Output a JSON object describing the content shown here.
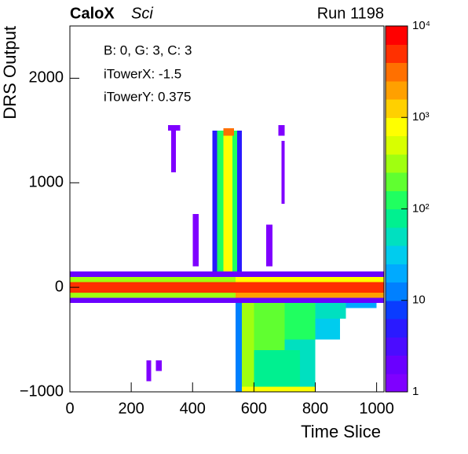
{
  "chart_data": {
    "type": "heatmap",
    "title": "CaloX",
    "subtitle": "Sci",
    "run_label": "Run 1198",
    "annotations": [
      "B: 0, G: 3, C: 3",
      "iTowerX: -1.5",
      "iTowerY: 0.375"
    ],
    "xlabel": "Time Slice",
    "ylabel": "DRS Output",
    "xlim": [
      0,
      1024
    ],
    "ylim": [
      -1000,
      2500
    ],
    "xticks": [
      0,
      200,
      400,
      600,
      800,
      1000
    ],
    "yticks": [
      {
        "value": -1000,
        "label": "−1000"
      },
      0,
      1000,
      2000
    ],
    "zlim": [
      1,
      10000
    ],
    "zlog": true,
    "zticks": [
      1,
      10,
      {
        "value": 100,
        "label": "10²"
      },
      {
        "value": 1000,
        "label": "10³"
      },
      {
        "value": 10000,
        "label": "10⁴"
      }
    ],
    "palette": [
      "#7f00ff",
      "#6a00ff",
      "#4b0cff",
      "#2a1aff",
      "#0a3cff",
      "#0080ff",
      "#00aaff",
      "#00ccee",
      "#00e0c0",
      "#00f090",
      "#20ff60",
      "#60ff30",
      "#a0ff10",
      "#d8ff00",
      "#ffff00",
      "#ffd000",
      "#ffa000",
      "#ff7000",
      "#ff3000",
      "#ff0000"
    ],
    "cells": [
      [
        0,
        1024,
        100,
        150,
        2
      ],
      [
        0,
        540,
        50,
        100,
        300
      ],
      [
        540,
        1024,
        50,
        100,
        800
      ],
      [
        0,
        1024,
        -50,
        50,
        6000
      ],
      [
        0,
        540,
        -100,
        -50,
        300
      ],
      [
        540,
        1024,
        -100,
        -50,
        2000
      ],
      [
        0,
        1024,
        -150,
        -100,
        2
      ],
      [
        465,
        480,
        150,
        1500,
        5
      ],
      [
        480,
        500,
        150,
        1500,
        150
      ],
      [
        500,
        530,
        150,
        1500,
        700
      ],
      [
        530,
        545,
        150,
        1500,
        150
      ],
      [
        545,
        560,
        150,
        1500,
        5
      ],
      [
        500,
        535,
        1450,
        1520,
        3000
      ],
      [
        540,
        560,
        -1000,
        -150,
        10
      ],
      [
        560,
        600,
        -1000,
        -150,
        300
      ],
      [
        600,
        700,
        -600,
        -150,
        200
      ],
      [
        700,
        800,
        -500,
        -150,
        100
      ],
      [
        800,
        900,
        -300,
        -150,
        50
      ],
      [
        900,
        1000,
        -200,
        -150,
        20
      ],
      [
        600,
        750,
        -950,
        -600,
        80
      ],
      [
        750,
        800,
        -950,
        -600,
        40
      ],
      [
        700,
        800,
        -600,
        -500,
        60
      ],
      [
        800,
        880,
        -500,
        -300,
        30
      ],
      [
        560,
        800,
        -1000,
        -950,
        800
      ],
      [
        320,
        360,
        1500,
        1550,
        1
      ],
      [
        680,
        700,
        1450,
        1550,
        1
      ],
      [
        250,
        265,
        -900,
        -700,
        1
      ],
      [
        280,
        300,
        -800,
        -700,
        1
      ],
      [
        400,
        420,
        200,
        700,
        1
      ],
      [
        640,
        660,
        200,
        600,
        1
      ],
      [
        330,
        345,
        1100,
        1500,
        1
      ],
      [
        690,
        700,
        800,
        1400,
        1
      ]
    ]
  }
}
